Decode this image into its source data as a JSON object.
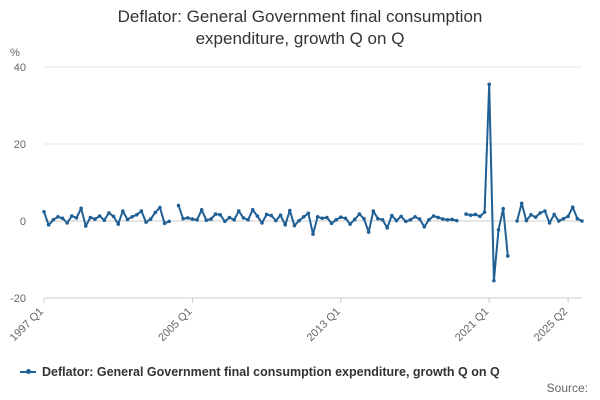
{
  "chart_data": {
    "type": "line",
    "title_line1": "Deflator: General Government final consumption",
    "title_line2": "expenditure, growth Q on Q",
    "ylabel": "%",
    "ylim": [
      -20,
      40
    ],
    "yticks": [
      -20,
      0,
      20,
      40
    ],
    "x_tick_labels": [
      "1997 Q1",
      "2005 Q1",
      "2013 Q1",
      "2021 Q1",
      "2025 Q2"
    ],
    "x_tick_indices": [
      0,
      32,
      64,
      96,
      113
    ],
    "legend_label": "Deflator: General Government final consumption expenditure, growth Q on Q",
    "source_label": "Source:",
    "line_color": "#206095",
    "series": [
      {
        "name": "Deflator: General Government final consumption expenditure, growth Q on Q",
        "values": [
          2.4,
          -1.0,
          0.3,
          1.1,
          0.7,
          -0.5,
          1.3,
          0.8,
          3.3,
          -1.3,
          0.9,
          0.5,
          1.3,
          0.2,
          2.1,
          1.2,
          -0.8,
          2.6,
          0.4,
          1.1,
          1.6,
          2.6,
          -0.3,
          0.5,
          2.2,
          3.5,
          -0.6,
          -0.1,
          null,
          4.0,
          0.6,
          0.8,
          0.5,
          0.3,
          2.9,
          0.2,
          0.5,
          1.8,
          1.6,
          -0.1,
          0.9,
          0.3,
          2.6,
          0.8,
          0.3,
          2.9,
          1.3,
          -0.5,
          1.7,
          1.4,
          0.1,
          1.5,
          -1.0,
          2.7,
          -1.2,
          0.1,
          1.1,
          2.0,
          -3.4,
          1.1,
          0.7,
          0.9,
          -0.6,
          0.3,
          1.0,
          0.7,
          -0.8,
          0.4,
          1.8,
          0.6,
          -2.9,
          2.6,
          0.6,
          0.3,
          -1.8,
          1.4,
          0.1,
          1.2,
          -0.1,
          0.3,
          1.1,
          0.5,
          -1.5,
          0.3,
          1.3,
          0.9,
          0.5,
          0.3,
          0.4,
          0.1,
          null,
          1.8,
          1.5,
          1.7,
          1.2,
          2.3,
          35.5,
          -15.5,
          -2.3,
          3.2,
          -9.1,
          null,
          0.0,
          4.6,
          0.1,
          1.6,
          1.0,
          2.1,
          2.6,
          -0.5,
          1.7,
          0.0,
          0.6,
          1.2,
          3.6,
          0.6,
          0.0
        ]
      }
    ]
  }
}
